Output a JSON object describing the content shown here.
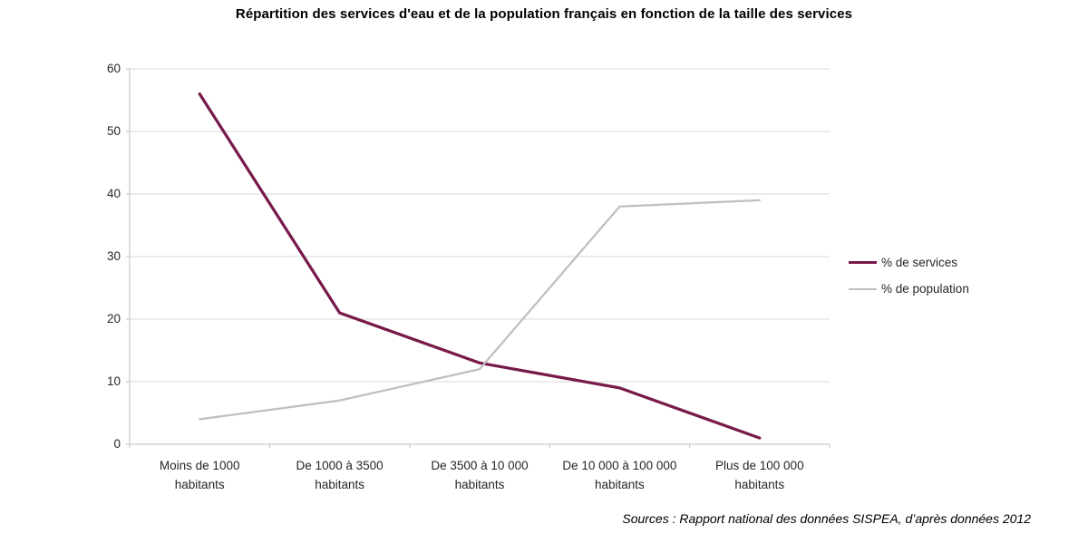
{
  "source_note": "Sources : Rapport national des données SISPEA, d’après données 2012",
  "colors": {
    "services_line": "#771A4B",
    "population_line": "#BFBFBF",
    "gridline": "#D9D9D9",
    "axis_line": "#BFBFBF",
    "axis_text": "#262626",
    "title_text": "#000000"
  },
  "chart_data": {
    "type": "line",
    "title": "Répartition des services d'eau et de la population français en fonction de la taille des services",
    "categories": [
      "Moins de 1000 habitants",
      "De 1000 à 3500 habitants",
      "De 3500 à 10 000 habitants",
      "De 10 000 à 100 000 habitants",
      "Plus de 100 000 habitants"
    ],
    "category_label_lines": [
      [
        "Moins de 1000",
        "habitants"
      ],
      [
        "De 1000 à 3500",
        "habitants"
      ],
      [
        "De 3500 à 10 000",
        "habitants"
      ],
      [
        "De 10 000 à 100 000",
        "habitants"
      ],
      [
        "Plus de 100 000",
        "habitants"
      ]
    ],
    "series": [
      {
        "name": "% de services",
        "slug": "services",
        "color": "#771A4B",
        "stroke_width": 3.25,
        "values": [
          56,
          21,
          13,
          9,
          1
        ]
      },
      {
        "name": "% de population",
        "slug": "population",
        "color": "#BFBFBF",
        "stroke_width": 2.25,
        "values": [
          4,
          7,
          12,
          38,
          39
        ]
      }
    ],
    "xlabel": "",
    "ylabel": "",
    "ylim": [
      0,
      60
    ],
    "y_ticks": [
      0,
      10,
      20,
      30,
      40,
      50,
      60
    ],
    "grid": true,
    "legend_position": "right"
  }
}
